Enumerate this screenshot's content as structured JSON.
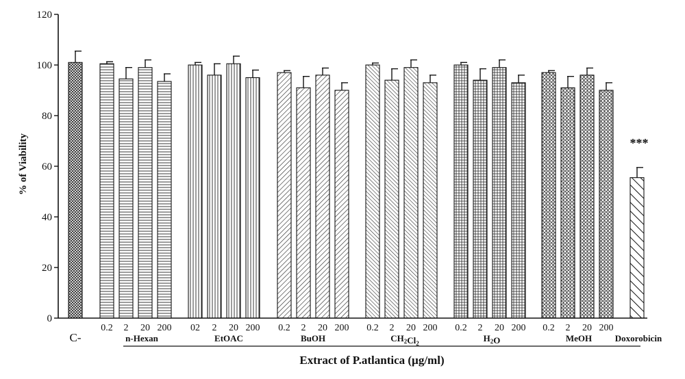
{
  "chart_data": {
    "type": "bar",
    "title": "",
    "ylabel": "% of Viability",
    "xlabel": "Extract of P.atlantica (µg/ml)",
    "ylim": [
      0,
      120
    ],
    "yticks": [
      0,
      20,
      40,
      60,
      80,
      100,
      120
    ],
    "grid": false,
    "legend": "none",
    "bars": [
      {
        "group": "C-",
        "dose": "",
        "pattern": "crosshatch",
        "value": 101,
        "error": 4.5
      },
      {
        "group": "n-Hexan",
        "dose": "0.2",
        "pattern": "horizontal",
        "value": 100.5,
        "error": 0.8
      },
      {
        "group": "n-Hexan",
        "dose": "2",
        "pattern": "horizontal",
        "value": 94.5,
        "error": 4.5
      },
      {
        "group": "n-Hexan",
        "dose": "20",
        "pattern": "horizontal",
        "value": 99,
        "error": 3
      },
      {
        "group": "n-Hexan",
        "dose": "200",
        "pattern": "horizontal",
        "value": 93.5,
        "error": 3
      },
      {
        "group": "EtOAC",
        "dose": "02",
        "pattern": "vertical",
        "value": 100,
        "error": 1
      },
      {
        "group": "EtOAC",
        "dose": "2",
        "pattern": "vertical",
        "value": 96,
        "error": 4.5
      },
      {
        "group": "EtOAC",
        "dose": "20",
        "pattern": "vertical",
        "value": 100.5,
        "error": 3
      },
      {
        "group": "EtOAC",
        "dose": "200",
        "pattern": "vertical",
        "value": 95,
        "error": 3
      },
      {
        "group": "BuOH",
        "dose": "0.2",
        "pattern": "diagonal",
        "value": 97,
        "error": 0.8
      },
      {
        "group": "BuOH",
        "dose": "2",
        "pattern": "diagonal",
        "value": 91,
        "error": 4.5
      },
      {
        "group": "BuOH",
        "dose": "20",
        "pattern": "diagonal",
        "value": 96,
        "error": 2.8
      },
      {
        "group": "BuOH",
        "dose": "200",
        "pattern": "diagonal",
        "value": 90,
        "error": 3
      },
      {
        "group": "CH2Cl2",
        "dose": "0.2",
        "pattern": "diagonal-dense",
        "value": 100,
        "error": 0.8
      },
      {
        "group": "CH2Cl2",
        "dose": "2",
        "pattern": "diagonal-dense",
        "value": 94,
        "error": 4.5
      },
      {
        "group": "CH2Cl2",
        "dose": "20",
        "pattern": "diagonal-dense",
        "value": 99,
        "error": 3
      },
      {
        "group": "CH2Cl2",
        "dose": "200",
        "pattern": "diagonal-dense",
        "value": 93,
        "error": 3
      },
      {
        "group": "H2O",
        "dose": "0.2",
        "pattern": "grid",
        "value": 100,
        "error": 1
      },
      {
        "group": "H2O",
        "dose": "2",
        "pattern": "grid",
        "value": 94,
        "error": 4.5
      },
      {
        "group": "H2O",
        "dose": "20",
        "pattern": "grid",
        "value": 99,
        "error": 3
      },
      {
        "group": "H2O",
        "dose": "200",
        "pattern": "grid",
        "value": 93,
        "error": 3
      },
      {
        "group": "MeOH",
        "dose": "0.2",
        "pattern": "diamond",
        "value": 97,
        "error": 0.8
      },
      {
        "group": "MeOH",
        "dose": "2",
        "pattern": "diamond",
        "value": 91,
        "error": 4.5
      },
      {
        "group": "MeOH",
        "dose": "20",
        "pattern": "diamond",
        "value": 96,
        "error": 2.8
      },
      {
        "group": "MeOH",
        "dose": "200",
        "pattern": "diamond",
        "value": 90,
        "error": 3
      },
      {
        "group": "Doxorobicin",
        "dose": "",
        "pattern": "diagonal-wide",
        "value": 55.5,
        "error": 4
      }
    ],
    "groups": [
      {
        "name": "C-",
        "label_main": "C-",
        "label_sub": ""
      },
      {
        "name": "n-Hexan",
        "label_main": "n-Hexan",
        "label_sub": ""
      },
      {
        "name": "EtOAC",
        "label_main": "EtOAC",
        "label_sub": ""
      },
      {
        "name": "BuOH",
        "label_main": "BuOH",
        "label_sub": ""
      },
      {
        "name": "CH2Cl2",
        "label_main": "CH",
        "label_sub": "2",
        "label_main2": "Cl",
        "label_sub2": "2"
      },
      {
        "name": "H2O",
        "label_main": "H",
        "label_sub": "2",
        "label_main2": "O"
      },
      {
        "name": "MeOH",
        "label_main": "MeOH",
        "label_sub": ""
      },
      {
        "name": "Doxorobicin",
        "label_main": "Doxorobicin",
        "label_sub": ""
      }
    ],
    "annotations": [
      {
        "target": "Doxorobicin",
        "text": "***"
      }
    ]
  }
}
